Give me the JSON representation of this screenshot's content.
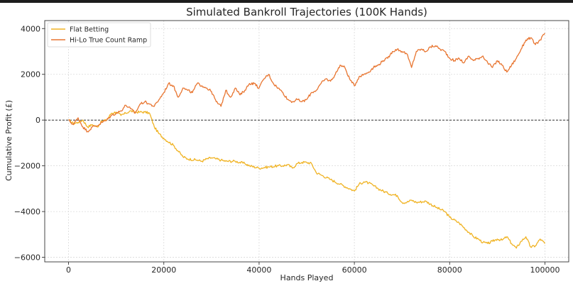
{
  "chart_data": {
    "type": "line",
    "title": "Simulated Bankroll Trajectories (100K Hands)",
    "xlabel": "Hands Played",
    "ylabel": "Cumulative Profit (£)",
    "xlim": [
      -5000,
      105000
    ],
    "ylim": [
      -6200,
      4350
    ],
    "xticks": [
      0,
      20000,
      40000,
      60000,
      80000,
      100000
    ],
    "yticks": [
      -6000,
      -4000,
      -2000,
      0,
      2000,
      4000
    ],
    "grid": true,
    "legend_position": "top-left",
    "reference_line": {
      "y": 0,
      "style": "dashed",
      "color": "#333333"
    },
    "series": [
      {
        "name": "Flat Betting",
        "color": "#f0b323",
        "x": [
          0,
          1000,
          2000,
          3000,
          4000,
          5000,
          6000,
          7000,
          8000,
          9000,
          10000,
          11000,
          12000,
          13000,
          14000,
          15000,
          16000,
          17000,
          18000,
          19000,
          20000,
          22000,
          24000,
          25000,
          27000,
          28000,
          29000,
          30000,
          31000,
          32000,
          33000,
          35000,
          37000,
          38000,
          40000,
          42000,
          44000,
          45000,
          46000,
          47000,
          48000,
          49000,
          50000,
          51000,
          52000,
          53000,
          55000,
          57000,
          59000,
          60000,
          61000,
          62000,
          63000,
          65000,
          67000,
          69000,
          70000,
          71000,
          72000,
          73000,
          75000,
          77000,
          79000,
          80000,
          82000,
          84000,
          85000,
          86000,
          87000,
          88000,
          89000,
          90000,
          91000,
          92000,
          93000,
          94000,
          95000,
          96000,
          97000,
          98000,
          99000,
          100000
        ],
        "values": [
          0,
          -150,
          -100,
          0,
          -300,
          -200,
          -300,
          -50,
          0,
          300,
          350,
          200,
          300,
          400,
          350,
          350,
          350,
          300,
          -300,
          -600,
          -800,
          -1100,
          -1600,
          -1700,
          -1750,
          -1800,
          -1700,
          -1650,
          -1700,
          -1750,
          -1800,
          -1800,
          -1900,
          -2000,
          -2100,
          -2050,
          -2000,
          -2000,
          -1950,
          -2100,
          -1900,
          -1850,
          -1850,
          -1900,
          -2300,
          -2400,
          -2600,
          -2800,
          -3000,
          -3100,
          -2800,
          -2700,
          -2750,
          -3000,
          -3200,
          -3300,
          -3600,
          -3600,
          -3500,
          -3600,
          -3550,
          -3800,
          -4000,
          -4250,
          -4500,
          -4900,
          -5100,
          -5200,
          -5350,
          -5400,
          -5300,
          -5200,
          -5250,
          -5100,
          -5400,
          -5600,
          -5300,
          -5100,
          -5550,
          -5500,
          -5200,
          -5400
        ]
      },
      {
        "name": "Hi-Lo True Count Ramp",
        "color": "#e87530",
        "x": [
          0,
          1000,
          2000,
          3000,
          4000,
          5000,
          6000,
          7000,
          8000,
          9000,
          10000,
          11000,
          12000,
          13000,
          14000,
          15000,
          16000,
          17000,
          18000,
          19000,
          20000,
          21000,
          22000,
          23000,
          24000,
          25000,
          26000,
          27000,
          28000,
          29000,
          30000,
          31000,
          32000,
          33000,
          34000,
          35000,
          36000,
          37000,
          38000,
          39000,
          40000,
          41000,
          42000,
          43000,
          44000,
          45000,
          46000,
          47000,
          48000,
          49000,
          50000,
          51000,
          52000,
          53000,
          54000,
          55000,
          56000,
          57000,
          58000,
          59000,
          60000,
          61000,
          62000,
          63000,
          64000,
          65000,
          66000,
          67000,
          68000,
          69000,
          70000,
          71000,
          72000,
          73000,
          74000,
          75000,
          76000,
          77000,
          78000,
          79000,
          80000,
          81000,
          82000,
          83000,
          84000,
          85000,
          86000,
          87000,
          88000,
          89000,
          90000,
          91000,
          92000,
          93000,
          94000,
          95000,
          96000,
          97000,
          98000,
          99000,
          100000
        ],
        "values": [
          0,
          -200,
          100,
          -300,
          -500,
          -300,
          -250,
          -100,
          0,
          200,
          300,
          400,
          650,
          500,
          300,
          700,
          800,
          700,
          600,
          900,
          1200,
          1600,
          1500,
          1000,
          1400,
          1300,
          1200,
          1600,
          1500,
          1400,
          1250,
          800,
          600,
          1300,
          1000,
          1400,
          1100,
          1300,
          1600,
          1600,
          1400,
          1800,
          2000,
          1600,
          1400,
          1200,
          900,
          800,
          900,
          800,
          900,
          1200,
          1300,
          1600,
          1800,
          1700,
          2000,
          2400,
          2300,
          1800,
          1500,
          1900,
          2000,
          2100,
          2300,
          2400,
          2600,
          2700,
          3000,
          3100,
          3000,
          2900,
          2300,
          3000,
          3100,
          3000,
          3200,
          3250,
          3100,
          3000,
          2700,
          2600,
          2700,
          2500,
          2800,
          2600,
          2700,
          2800,
          2500,
          2300,
          2600,
          2400,
          2100,
          2400,
          2700,
          3100,
          3500,
          3600,
          3300,
          3500,
          3800
        ]
      }
    ]
  }
}
